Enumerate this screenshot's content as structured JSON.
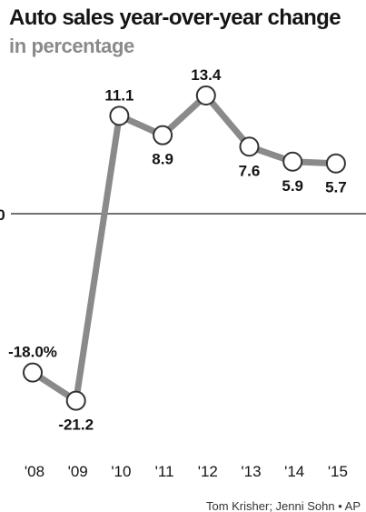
{
  "title": "Auto sales year-over-year change",
  "subtitle": "in percentage",
  "credit": "Tom Krisher; Jenni Sohn • AP",
  "colors": {
    "line": "#8a8a8a",
    "marker_fill": "#ffffff",
    "marker_stroke": "#333333",
    "baseline": "#444444",
    "text": "#141414"
  },
  "chart_data": {
    "type": "line",
    "title": "Auto sales year-over-year change",
    "subtitle": "in percentage",
    "x": [
      "'08",
      "'09",
      "'10",
      "'11",
      "'12",
      "'13",
      "'14",
      "'15"
    ],
    "series": [
      {
        "values": [
          -18.0,
          -21.2,
          11.1,
          8.9,
          13.4,
          7.6,
          5.9,
          5.7
        ],
        "data_labels": [
          "-18.0%",
          "-21.2",
          "11.1",
          "8.9",
          "13.4",
          "7.6",
          "5.9",
          "5.7"
        ]
      }
    ],
    "zero_line_label": "0",
    "grid": false,
    "legend": "none"
  }
}
